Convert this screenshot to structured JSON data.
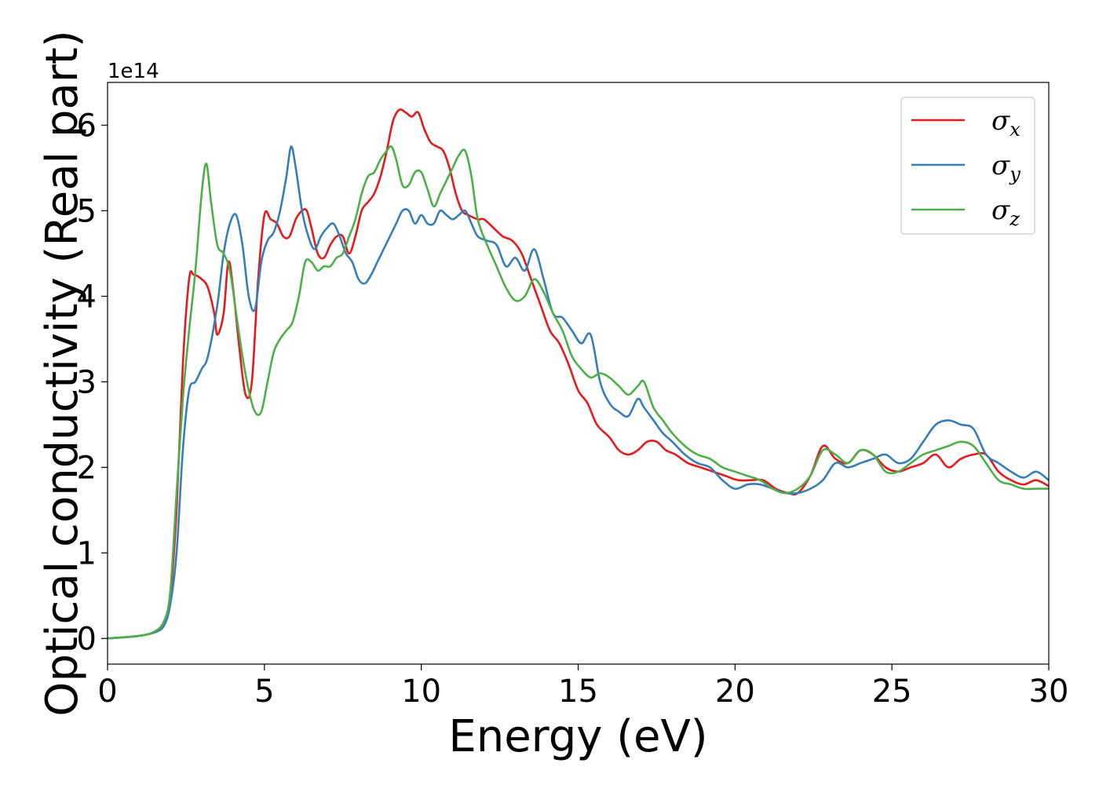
{
  "chart_data": {
    "type": "line",
    "xlabel": "Energy (eV)",
    "ylabel": "Optical conductivity (Real part)",
    "y_offset_label": "1e14",
    "y_scale_factor": 100000000000000.0,
    "xlim": [
      0,
      30
    ],
    "ylim": [
      -0.3,
      6.5
    ],
    "x_ticks": [
      0,
      5,
      10,
      15,
      20,
      25,
      30
    ],
    "y_ticks": [
      0,
      1,
      2,
      3,
      4,
      5,
      6
    ],
    "grid": false,
    "legend_position": "top-right",
    "series": [
      {
        "name": "σx",
        "symbol": "σ",
        "subscript": "x",
        "color": "#e41a1c",
        "x": [
          0,
          1,
          1.5,
          1.8,
          2.0,
          2.2,
          2.4,
          2.6,
          2.75,
          3.0,
          3.2,
          3.4,
          3.5,
          3.7,
          3.85,
          4.0,
          4.2,
          4.4,
          4.6,
          4.8,
          5.0,
          5.2,
          5.4,
          5.6,
          5.8,
          6.0,
          6.2,
          6.35,
          6.5,
          6.7,
          6.9,
          7.1,
          7.3,
          7.5,
          7.7,
          7.9,
          8.1,
          8.3,
          8.5,
          8.7,
          8.9,
          9.1,
          9.3,
          9.5,
          9.7,
          9.9,
          10.1,
          10.3,
          10.5,
          10.7,
          10.9,
          11.1,
          11.3,
          11.5,
          11.8,
          12.0,
          12.3,
          12.6,
          12.9,
          13.2,
          13.5,
          13.8,
          14.1,
          14.4,
          14.7,
          15.0,
          15.3,
          15.6,
          16.0,
          16.3,
          16.6,
          16.9,
          17.2,
          17.5,
          17.8,
          18.1,
          18.5,
          18.9,
          19.3,
          19.7,
          20.1,
          20.5,
          20.9,
          21.3,
          21.7,
          22.0,
          22.4,
          22.8,
          23.2,
          23.6,
          24.0,
          24.4,
          24.8,
          25.2,
          25.6,
          26.0,
          26.4,
          26.8,
          27.2,
          27.6,
          28.0,
          28.4,
          28.8,
          29.2,
          29.6,
          30.0
        ],
        "y": [
          0,
          0.03,
          0.08,
          0.2,
          0.5,
          1.5,
          3.2,
          4.2,
          4.25,
          4.2,
          4.1,
          3.8,
          3.55,
          3.8,
          4.4,
          4.1,
          3.4,
          2.85,
          3.0,
          4.2,
          4.95,
          4.9,
          4.85,
          4.7,
          4.7,
          4.9,
          5.0,
          5.0,
          4.8,
          4.5,
          4.45,
          4.6,
          4.7,
          4.7,
          4.5,
          4.7,
          5.0,
          5.1,
          5.2,
          5.4,
          5.7,
          6.05,
          6.18,
          6.15,
          6.1,
          6.15,
          5.95,
          5.8,
          5.75,
          5.7,
          5.5,
          5.2,
          5.0,
          4.95,
          4.9,
          4.9,
          4.8,
          4.7,
          4.65,
          4.5,
          4.2,
          3.9,
          3.6,
          3.45,
          3.2,
          2.9,
          2.75,
          2.5,
          2.35,
          2.2,
          2.15,
          2.2,
          2.3,
          2.3,
          2.2,
          2.15,
          2.05,
          2.0,
          1.95,
          1.9,
          1.85,
          1.85,
          1.85,
          1.75,
          1.7,
          1.7,
          1.9,
          2.25,
          2.1,
          2.05,
          2.2,
          2.15,
          2.0,
          1.95,
          2.0,
          2.05,
          2.15,
          2.0,
          2.1,
          2.15,
          2.15,
          1.95,
          1.85,
          1.8,
          1.85,
          1.78
        ]
      },
      {
        "name": "σy",
        "symbol": "σ",
        "subscript": "y",
        "color": "#377eb8",
        "x": [
          0,
          1,
          1.5,
          1.8,
          2.0,
          2.2,
          2.4,
          2.6,
          2.8,
          3.0,
          3.2,
          3.5,
          3.7,
          3.9,
          4.1,
          4.3,
          4.5,
          4.7,
          4.9,
          5.1,
          5.3,
          5.5,
          5.7,
          5.85,
          6.0,
          6.2,
          6.4,
          6.6,
          6.8,
          7.0,
          7.2,
          7.4,
          7.6,
          7.8,
          8.0,
          8.2,
          8.4,
          8.6,
          8.8,
          9.0,
          9.2,
          9.4,
          9.6,
          9.8,
          10.0,
          10.2,
          10.4,
          10.6,
          10.8,
          11.0,
          11.2,
          11.4,
          11.6,
          11.8,
          12.1,
          12.4,
          12.7,
          13.0,
          13.3,
          13.6,
          13.9,
          14.2,
          14.5,
          14.8,
          15.1,
          15.4,
          15.7,
          16.0,
          16.3,
          16.6,
          16.9,
          17.1,
          17.4,
          17.7,
          18.0,
          18.4,
          18.8,
          19.2,
          19.6,
          20.0,
          20.4,
          20.8,
          21.2,
          21.6,
          22.0,
          22.4,
          22.8,
          23.2,
          23.6,
          24.0,
          24.4,
          24.8,
          25.2,
          25.6,
          26.0,
          26.4,
          26.8,
          27.2,
          27.6,
          28.0,
          28.4,
          28.8,
          29.2,
          29.6,
          30.0
        ],
        "y": [
          0,
          0.03,
          0.07,
          0.15,
          0.4,
          1.0,
          2.2,
          2.9,
          3.0,
          3.15,
          3.3,
          3.9,
          4.5,
          4.85,
          4.95,
          4.6,
          4.0,
          3.85,
          4.4,
          4.65,
          4.75,
          5.0,
          5.4,
          5.75,
          5.5,
          5.0,
          4.7,
          4.55,
          4.7,
          4.8,
          4.85,
          4.7,
          4.5,
          4.4,
          4.2,
          4.15,
          4.25,
          4.4,
          4.55,
          4.7,
          4.85,
          5.0,
          5.0,
          4.85,
          4.95,
          4.85,
          4.85,
          5.0,
          4.95,
          4.9,
          4.95,
          5.0,
          4.85,
          4.7,
          4.65,
          4.6,
          4.35,
          4.45,
          4.3,
          4.55,
          4.2,
          3.8,
          3.75,
          3.6,
          3.45,
          3.55,
          3.0,
          2.75,
          2.65,
          2.6,
          2.8,
          2.7,
          2.55,
          2.4,
          2.3,
          2.15,
          2.05,
          2.0,
          1.85,
          1.75,
          1.8,
          1.8,
          1.75,
          1.7,
          1.7,
          1.75,
          1.85,
          2.05,
          2.0,
          2.05,
          2.1,
          2.15,
          2.05,
          2.1,
          2.3,
          2.5,
          2.55,
          2.5,
          2.45,
          2.15,
          2.05,
          1.95,
          1.88,
          1.95,
          1.85
        ]
      },
      {
        "name": "σz",
        "symbol": "σ",
        "subscript": "z",
        "color": "#4daf4a",
        "x": [
          0,
          1,
          1.5,
          1.8,
          2.0,
          2.2,
          2.4,
          2.6,
          2.8,
          3.0,
          3.15,
          3.3,
          3.5,
          3.7,
          3.9,
          4.1,
          4.3,
          4.5,
          4.7,
          4.9,
          5.1,
          5.3,
          5.5,
          5.7,
          5.9,
          6.1,
          6.3,
          6.5,
          6.7,
          6.9,
          7.1,
          7.3,
          7.5,
          7.7,
          7.9,
          8.1,
          8.3,
          8.5,
          8.7,
          8.9,
          9.05,
          9.2,
          9.4,
          9.6,
          9.8,
          10.0,
          10.2,
          10.4,
          10.6,
          10.8,
          11.0,
          11.2,
          11.4,
          11.6,
          11.8,
          12.1,
          12.4,
          12.7,
          13.0,
          13.3,
          13.6,
          13.9,
          14.2,
          14.5,
          14.8,
          15.1,
          15.4,
          15.7,
          16.0,
          16.3,
          16.6,
          16.9,
          17.1,
          17.4,
          17.7,
          18.0,
          18.4,
          18.8,
          19.2,
          19.6,
          20.0,
          20.4,
          20.8,
          21.2,
          21.6,
          22.0,
          22.4,
          22.8,
          23.2,
          23.6,
          24.0,
          24.4,
          24.8,
          25.2,
          25.6,
          26.0,
          26.4,
          26.8,
          27.2,
          27.6,
          28.0,
          28.4,
          28.8,
          29.2,
          29.6,
          30.0
        ],
        "y": [
          0,
          0.03,
          0.08,
          0.2,
          0.55,
          1.7,
          2.8,
          3.6,
          4.3,
          5.2,
          5.55,
          5.1,
          4.6,
          4.5,
          4.3,
          3.8,
          3.3,
          2.9,
          2.65,
          2.65,
          3.0,
          3.35,
          3.5,
          3.6,
          3.7,
          4.0,
          4.4,
          4.4,
          4.3,
          4.35,
          4.35,
          4.45,
          4.5,
          4.7,
          4.9,
          5.2,
          5.4,
          5.45,
          5.6,
          5.7,
          5.75,
          5.6,
          5.3,
          5.3,
          5.45,
          5.45,
          5.25,
          5.05,
          5.2,
          5.35,
          5.5,
          5.65,
          5.7,
          5.4,
          4.9,
          4.6,
          4.35,
          4.1,
          3.95,
          4.0,
          4.2,
          4.05,
          3.8,
          3.6,
          3.3,
          3.15,
          3.05,
          3.1,
          3.05,
          2.95,
          2.85,
          2.95,
          3.0,
          2.7,
          2.55,
          2.4,
          2.25,
          2.15,
          2.1,
          2.0,
          1.95,
          1.9,
          1.85,
          1.75,
          1.7,
          1.75,
          1.9,
          2.2,
          2.15,
          2.05,
          2.2,
          2.15,
          1.95,
          1.95,
          2.05,
          2.15,
          2.2,
          2.25,
          2.3,
          2.25,
          2.05,
          1.85,
          1.8,
          1.75,
          1.75,
          1.75
        ]
      }
    ]
  }
}
